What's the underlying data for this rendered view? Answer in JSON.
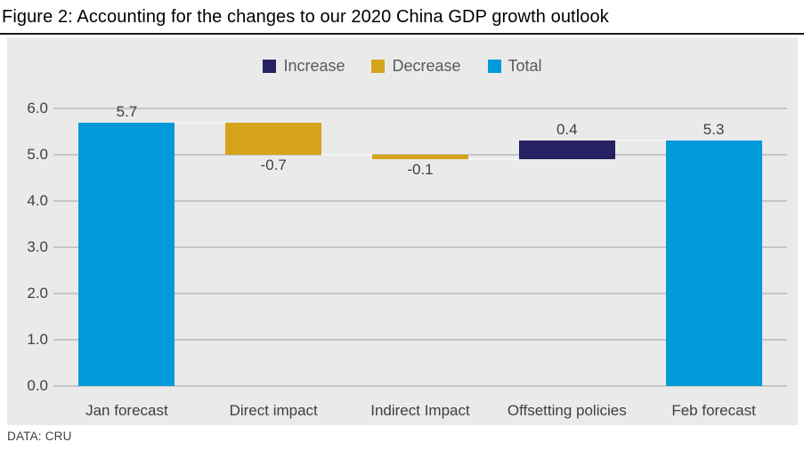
{
  "title": "Figure 2: Accounting for the changes to our 2020 China GDP growth outlook",
  "footer": {
    "source_label": "DATA: CRU"
  },
  "legend": {
    "items": [
      {
        "label": "Increase",
        "color": "#262160"
      },
      {
        "label": "Decrease",
        "color": "#D5A41B"
      },
      {
        "label": "Total",
        "color": "#009ADB"
      }
    ]
  },
  "chart_data": {
    "type": "bar",
    "subtype": "waterfall",
    "title": "Figure 2: Accounting for the changes to our 2020 China GDP growth outlook",
    "source": "DATA: CRU",
    "categories": [
      "Jan forecast",
      "Direct impact",
      "Indirect Impact",
      "Offsetting policies",
      "Feb forecast"
    ],
    "values": [
      5.7,
      -0.7,
      -0.1,
      0.4,
      5.3
    ],
    "data_labels": [
      "5.7",
      "-0.7",
      "-0.1",
      "0.4",
      "5.3"
    ],
    "label_side": [
      "above",
      "below",
      "below",
      "above",
      "above"
    ],
    "bar_segments": [
      {
        "start": 0,
        "end": 5.7,
        "role": "total"
      },
      {
        "start": 5.0,
        "end": 5.7,
        "role": "decrease"
      },
      {
        "start": 4.9,
        "end": 5.0,
        "role": "decrease"
      },
      {
        "start": 4.9,
        "end": 5.3,
        "role": "increase"
      },
      {
        "start": 0,
        "end": 5.3,
        "role": "total"
      }
    ],
    "connectors": [
      5.7,
      5.0,
      4.9,
      5.3
    ],
    "ylim": [
      0,
      6
    ],
    "ytick_labels": [
      "6.0",
      "5.0",
      "4.0",
      "3.0",
      "2.0",
      "1.0",
      "0.0"
    ],
    "grid": true,
    "legend_position": "top",
    "legend_entries": [
      "Increase",
      "Decrease",
      "Total"
    ],
    "colors": {
      "increase": "#262160",
      "decrease": "#D5A41B",
      "total": "#009ADB"
    }
  }
}
